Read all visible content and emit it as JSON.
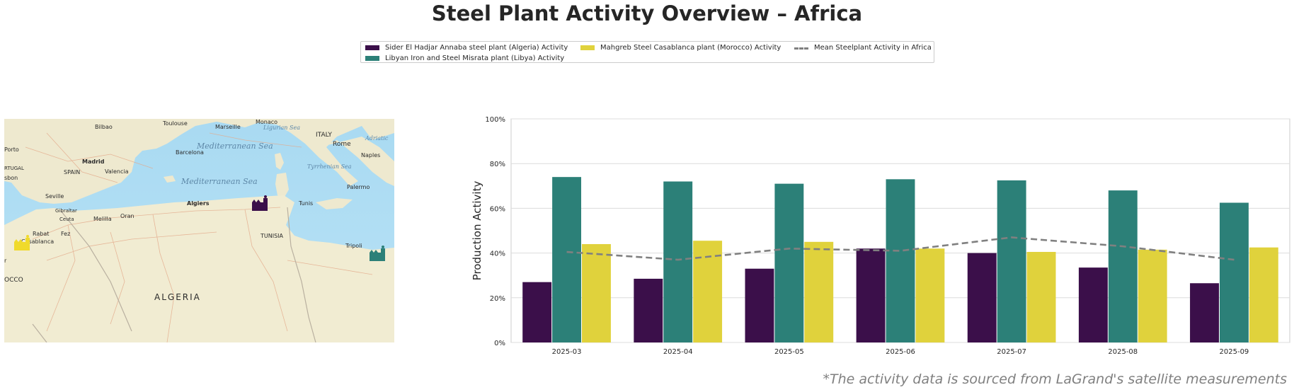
{
  "title": "Steel Plant Activity Overview – Africa",
  "footnote": "*The activity data is sourced from LaGrand's satellite measurements",
  "colors": {
    "algeria": "#3b0f4a",
    "libya": "#2c8078",
    "morocco": "#e0d23c",
    "mean": "#808080"
  },
  "legend": [
    {
      "label": "Sider El Hadjar Annaba steel plant (Algeria) Activity",
      "color": "#3b0f4a",
      "kind": "bar"
    },
    {
      "label": "Libyan Iron and Steel Misrata plant (Libya) Activity",
      "color": "#2c8078",
      "kind": "bar"
    },
    {
      "label": "Mahgreb Steel Casablanca plant (Morocco) Activity",
      "color": "#e0d23c",
      "kind": "bar"
    },
    {
      "label": "Mean Steelplant Activity in Africa",
      "color": "#808080",
      "kind": "dashed-line"
    }
  ],
  "map": {
    "labels": {
      "toulouse": "Toulouse",
      "bilbao": "Bilbao",
      "marseille": "Marseille",
      "monaco": "Monaco",
      "ligurian": "Ligurian Sea",
      "italy": "ITALY",
      "adriatic": "Adriatic",
      "rome": "Rome",
      "porto": "Porto",
      "madrid": "Madrid",
      "barcelona": "Barcelona",
      "spain": "SPAIN",
      "valencia": "Valencia",
      "naples": "Naples",
      "tyrrhenian": "Tyrrhenian Sea",
      "lisbon": "sbon",
      "portugal": "RTUGAL",
      "med_sea_1": "Mediterranean Sea",
      "med_sea_2": "Mediterranean Sea",
      "palermo": "Palermo",
      "seville": "Seville",
      "algiers": "Algiers",
      "tunis": "Tunis",
      "gibraltar": "Gibraltar",
      "ceuta": "Ceuta",
      "melilla": "Melilla",
      "oran": "Oran",
      "rabat": "Rabat",
      "fez": "Fez",
      "casablanca": "Casablanca",
      "tunisia": "TUNISIA",
      "tripoli": "Tripoli",
      "morocco": "OCCO",
      "algeria": "ALGERIA",
      "r": "r"
    },
    "markers": [
      "factory-icon-algeria",
      "factory-icon-libya",
      "factory-icon-morocco"
    ]
  },
  "chart_data": {
    "type": "bar",
    "title": "",
    "xlabel": "",
    "ylabel": "Production Activity",
    "ylim": [
      0,
      100
    ],
    "yticks": [
      "0%",
      "20%",
      "40%",
      "60%",
      "80%",
      "100%"
    ],
    "grid": true,
    "legend_position": "top-center",
    "categories": [
      "2025-03",
      "2025-04",
      "2025-05",
      "2025-06",
      "2025-07",
      "2025-08",
      "2025-09"
    ],
    "series": [
      {
        "name": "Sider El Hadjar Annaba steel plant (Algeria) Activity",
        "type": "bar",
        "values": [
          27,
          28.5,
          33,
          42,
          40,
          33.5,
          26.5
        ]
      },
      {
        "name": "Libyan Iron and Steel Misrata plant (Libya) Activity",
        "type": "bar",
        "values": [
          74,
          72,
          71,
          73,
          72.5,
          68,
          62.5
        ]
      },
      {
        "name": "Mahgreb Steel Casablanca plant (Morocco) Activity",
        "type": "bar",
        "values": [
          44,
          45.5,
          45,
          42,
          40.5,
          41.5,
          42.5
        ]
      },
      {
        "name": "Mean Steelplant Activity in Africa",
        "type": "line",
        "values": [
          40.5,
          37,
          42,
          41,
          47,
          43,
          37
        ]
      }
    ]
  }
}
